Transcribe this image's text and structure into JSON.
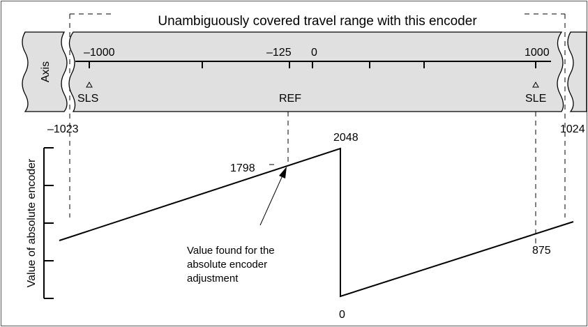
{
  "title": "Unambiguously covered travel range with this encoder",
  "axis_label": "Axis",
  "scale_labels": [
    "–1000",
    "–125",
    "0",
    "1000"
  ],
  "markers": [
    "SLS",
    "REF",
    "SLE"
  ],
  "range_limits": [
    "–1023",
    "1024"
  ],
  "y_axis_label": "Value of absolute encoder",
  "encoder_values": [
    "2048",
    "1798",
    "875",
    "0"
  ],
  "annotation": [
    "Value found for the",
    "absolute encoder",
    "adjustment"
  ]
}
